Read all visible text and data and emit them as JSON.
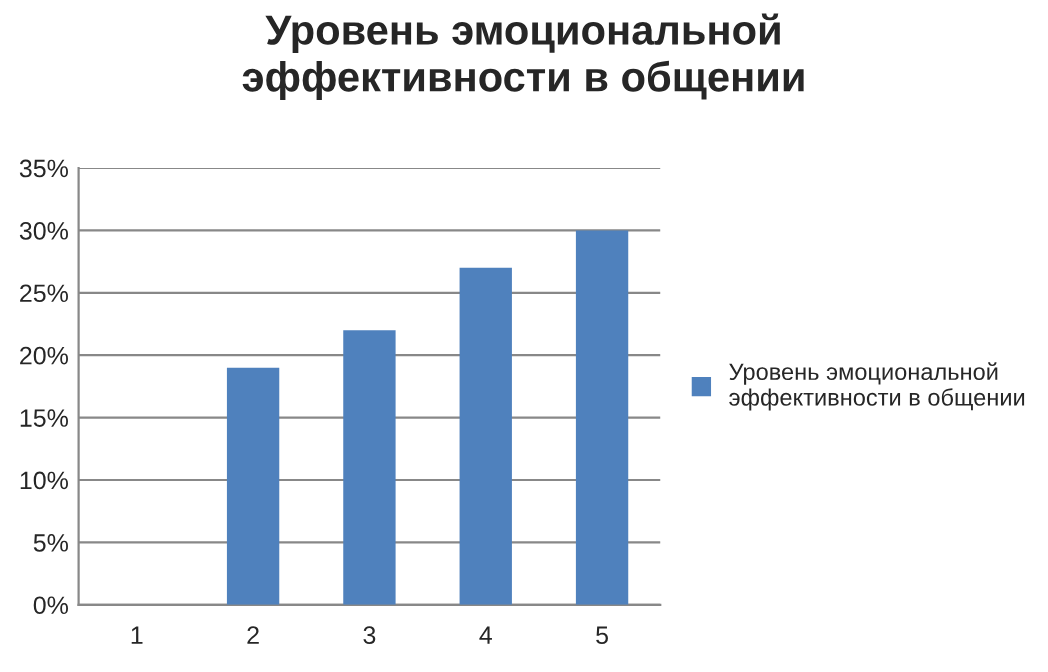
{
  "chart_data": {
    "type": "bar",
    "title": "Уровень эмоциональной эффективности в общении",
    "categories": [
      "1",
      "2",
      "3",
      "4",
      "5"
    ],
    "series": [
      {
        "name": "Уровень эмоциональной эффективности в общении",
        "color": "#4f81bd",
        "values": [
          null,
          19,
          22,
          27,
          30
        ]
      }
    ],
    "ylim": [
      0,
      35
    ],
    "yticks": [
      {
        "value": 0,
        "label": "0%"
      },
      {
        "value": 5,
        "label": "5%"
      },
      {
        "value": 10,
        "label": "10%"
      },
      {
        "value": 15,
        "label": "15%"
      },
      {
        "value": 20,
        "label": "20%"
      },
      {
        "value": 25,
        "label": "25%"
      },
      {
        "value": 30,
        "label": "30%"
      },
      {
        "value": 35,
        "label": "35%"
      }
    ],
    "grid": "y",
    "legend": "right"
  }
}
